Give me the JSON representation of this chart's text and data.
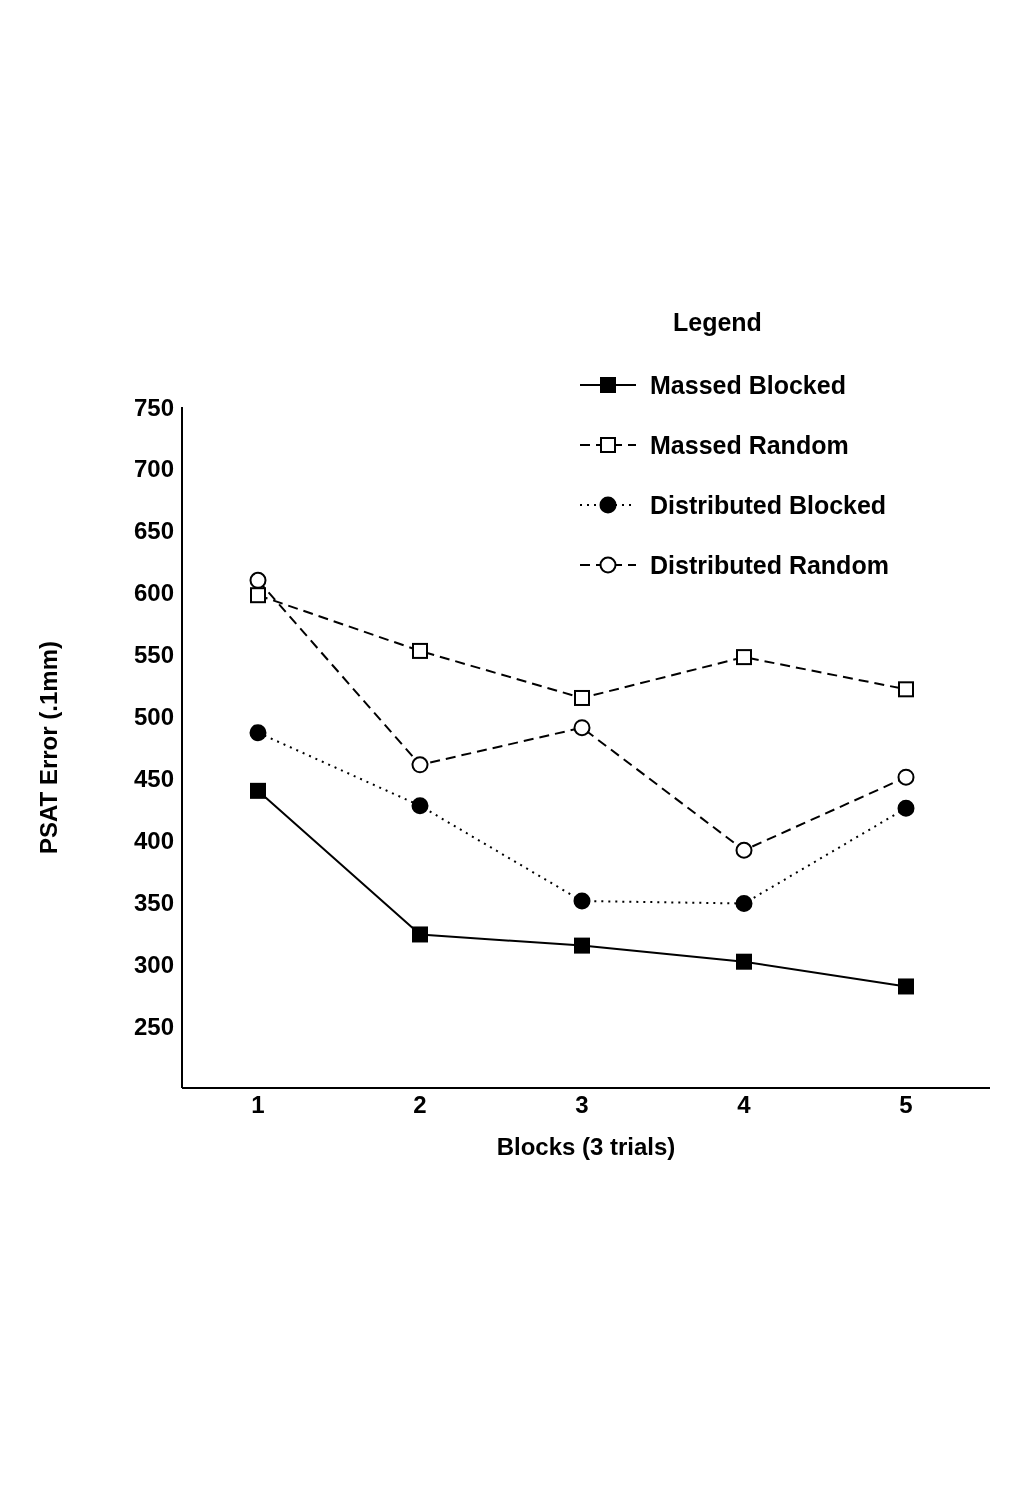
{
  "chart_data": {
    "type": "line",
    "xlabel": "Blocks (3 trials)",
    "ylabel": "PSAT Error (.1mm)",
    "legend_title": "Legend",
    "categories": [
      "1",
      "2",
      "3",
      "4",
      "5"
    ],
    "ylim": [
      200,
      750
    ],
    "yticks": [
      250,
      300,
      350,
      400,
      450,
      500,
      550,
      600,
      650,
      700,
      750
    ],
    "legend": "top right",
    "grid": false,
    "series": [
      {
        "name": "Massed Blocked",
        "color": "#000000",
        "marker": "square",
        "line_style": "solid",
        "values": [
          440,
          324,
          315,
          302,
          282
        ]
      },
      {
        "name": "Massed Random",
        "color": "#000000",
        "marker": "square",
        "line_style": "dashed",
        "values": [
          598,
          553,
          515,
          548,
          522
        ]
      },
      {
        "name": "Distributed Blocked",
        "color": "#000000",
        "marker": "circle",
        "line_style": "dotted",
        "values": [
          487,
          428,
          351,
          349,
          426
        ]
      },
      {
        "name": "Distributed Random",
        "color": "#000000",
        "marker": "circle",
        "line_style": "dashed",
        "values": [
          610,
          461,
          491,
          392,
          451
        ]
      }
    ]
  }
}
